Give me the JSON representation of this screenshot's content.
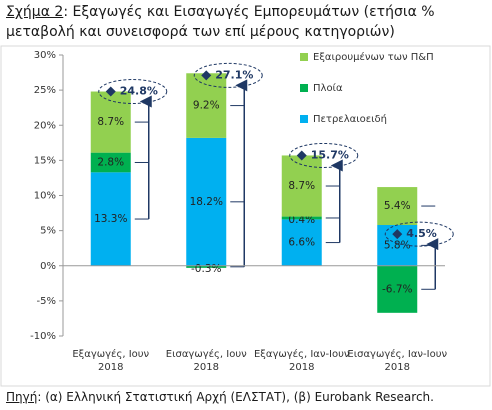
{
  "figure_label": "Σχήμα 2",
  "source_label": "Πηγή",
  "chart_data": {
    "type": "stacked-bar",
    "title": ": Εξαγωγές και Εισαγωγές Εμπορευμάτων (ετήσια % μεταβολή και συνεισφορά των επί μέρους κατηγοριών)",
    "source": ": (α) Ελληνική Στατιστική Αρχή (ΕΛΣΤΑΤ), (β) Eurobank Research.",
    "categories": [
      "Εξαγωγές, Ιουν 2018",
      "Εισαγωγές, Ιουν 2018",
      "Εξαγωγές, Ιαν-Ιουν 2018",
      "Εισαγωγές, Ιαν-Ιουν 2018"
    ],
    "series": [
      {
        "name": "Πετρελαιοειδή",
        "color": "#00b0f0",
        "values": [
          13.3,
          18.2,
          6.6,
          5.8
        ],
        "value_labels": [
          "13.3%",
          "18.2%",
          "6.6%",
          "5.8%"
        ]
      },
      {
        "name": "Πλοία",
        "color": "#00b050",
        "values": [
          2.8,
          -0.3,
          0.4,
          -6.7
        ],
        "value_labels": [
          "2.8%",
          "-0.3%",
          "0.4%",
          "-6.7%"
        ]
      },
      {
        "name": "Εξαιρουμένων των Π&Π",
        "color": "#92d050",
        "values": [
          8.7,
          9.2,
          8.7,
          5.4
        ],
        "value_labels": [
          "8.7%",
          "9.2%",
          "8.7%",
          "5.4%"
        ]
      }
    ],
    "totals": {
      "values": [
        24.8,
        27.1,
        15.7,
        4.5
      ],
      "value_labels": [
        "24.8%",
        "27.1%",
        "15.7%",
        "4.5%"
      ],
      "color": "#1f3864"
    },
    "ylim": [
      -10,
      30
    ],
    "yticks": [
      {
        "value": -10,
        "label": "-10%"
      },
      {
        "value": -5,
        "label": "-5%"
      },
      {
        "value": 0,
        "label": "0%"
      },
      {
        "value": 5,
        "label": "5%"
      },
      {
        "value": 10,
        "label": "10%"
      },
      {
        "value": 15,
        "label": "15%"
      },
      {
        "value": 20,
        "label": "20%"
      },
      {
        "value": 25,
        "label": "25%"
      },
      {
        "value": 30,
        "label": "30%"
      }
    ],
    "grid": false,
    "legend": "top-right"
  }
}
